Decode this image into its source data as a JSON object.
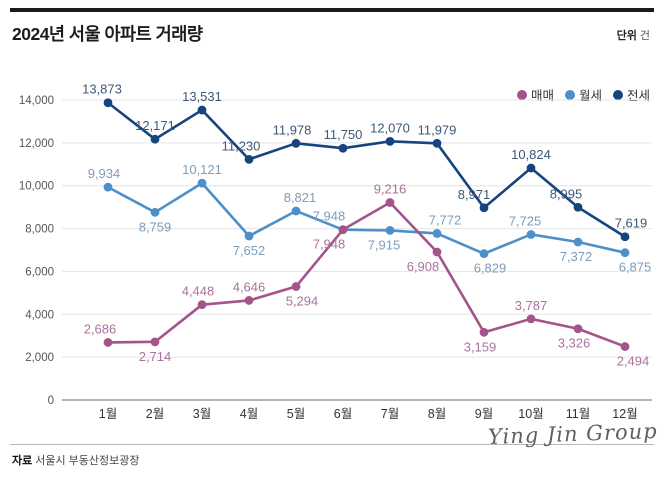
{
  "header": {
    "title": "2024년 서울 아파트 거래량",
    "unit_bold": "단위",
    "unit": "건"
  },
  "legend": {
    "items": [
      {
        "label": "매매",
        "color": "#a4548a"
      },
      {
        "label": "월세",
        "color": "#4d8fc9"
      },
      {
        "label": "전세",
        "color": "#16447e"
      }
    ]
  },
  "chart_data": {
    "type": "line",
    "title": "2024년 서울 아파트 거래량",
    "unit": "건",
    "categories": [
      "1월",
      "2월",
      "3월",
      "4월",
      "5월",
      "6월",
      "7월",
      "8월",
      "9월",
      "10월",
      "11월",
      "12월"
    ],
    "ylim": [
      0,
      14000
    ],
    "grid": true,
    "legend_position": "top-right",
    "yticks": [
      {
        "v": 0,
        "label": "0"
      },
      {
        "v": 2000,
        "label": "2,000"
      },
      {
        "v": 4000,
        "label": "4,000"
      },
      {
        "v": 6000,
        "label": "6,000"
      },
      {
        "v": 8000,
        "label": "8,000"
      },
      {
        "v": 10000,
        "label": "10,000"
      },
      {
        "v": 12000,
        "label": "12,000"
      },
      {
        "v": 14000,
        "label": "14,000"
      }
    ],
    "series": [
      {
        "name": "월세",
        "color": "#4d8fc9",
        "label_color": "#7e9cba",
        "values": [
          9934,
          8759,
          10121,
          7652,
          8821,
          7948,
          7915,
          7772,
          6829,
          7725,
          7372,
          6875
        ],
        "labels": [
          {
            "pos": "a",
            "dx": -4
          },
          {
            "pos": "b",
            "dx": 0
          },
          {
            "pos": "a",
            "dx": 0
          },
          {
            "pos": "b",
            "dx": 0
          },
          {
            "pos": "a",
            "dx": 4
          },
          {
            "pos": "a",
            "dx": -14
          },
          {
            "pos": "b",
            "dx": -6
          },
          {
            "pos": "a",
            "dx": 8
          },
          {
            "pos": "b",
            "dx": 6
          },
          {
            "pos": "a",
            "dx": -6
          },
          {
            "pos": "b",
            "dx": -2
          },
          {
            "pos": "b",
            "dx": 10
          }
        ]
      },
      {
        "name": "전세",
        "color": "#16447e",
        "label_color": "#3d5878",
        "values": [
          13873,
          12171,
          13531,
          11230,
          11978,
          11750,
          12070,
          11979,
          8971,
          10824,
          8995,
          7619
        ],
        "labels": [
          {
            "pos": "a",
            "dx": -6
          },
          {
            "pos": "a",
            "dx": 0
          },
          {
            "pos": "a",
            "dx": 0
          },
          {
            "pos": "a",
            "dx": -8
          },
          {
            "pos": "a",
            "dx": -4
          },
          {
            "pos": "a",
            "dx": 0
          },
          {
            "pos": "a",
            "dx": 0
          },
          {
            "pos": "a",
            "dx": 0
          },
          {
            "pos": "a",
            "dx": -10
          },
          {
            "pos": "a",
            "dx": 0
          },
          {
            "pos": "a",
            "dx": -12
          },
          {
            "pos": "a",
            "dx": 6
          }
        ]
      },
      {
        "name": "매매",
        "color": "#a4548a",
        "label_color": "#a8739c",
        "values": [
          2686,
          2714,
          4448,
          4646,
          5294,
          7948,
          9216,
          6908,
          3159,
          3787,
          3326,
          2494
        ],
        "labels": [
          {
            "pos": "a",
            "dx": -8
          },
          {
            "pos": "b",
            "dx": 0
          },
          {
            "pos": "a",
            "dx": -4
          },
          {
            "pos": "a",
            "dx": 0
          },
          {
            "pos": "b",
            "dx": 6
          },
          {
            "pos": "b",
            "dx": -14
          },
          {
            "pos": "a",
            "dx": 0
          },
          {
            "pos": "b",
            "dx": -14
          },
          {
            "pos": "b",
            "dx": -4
          },
          {
            "pos": "a",
            "dx": 0
          },
          {
            "pos": "b",
            "dx": -4
          },
          {
            "pos": "b",
            "dx": 8
          }
        ]
      }
    ]
  },
  "footer": {
    "source_bold": "자료",
    "source": "서울시 부동산정보광장"
  },
  "watermark": "Ying Jin Group"
}
